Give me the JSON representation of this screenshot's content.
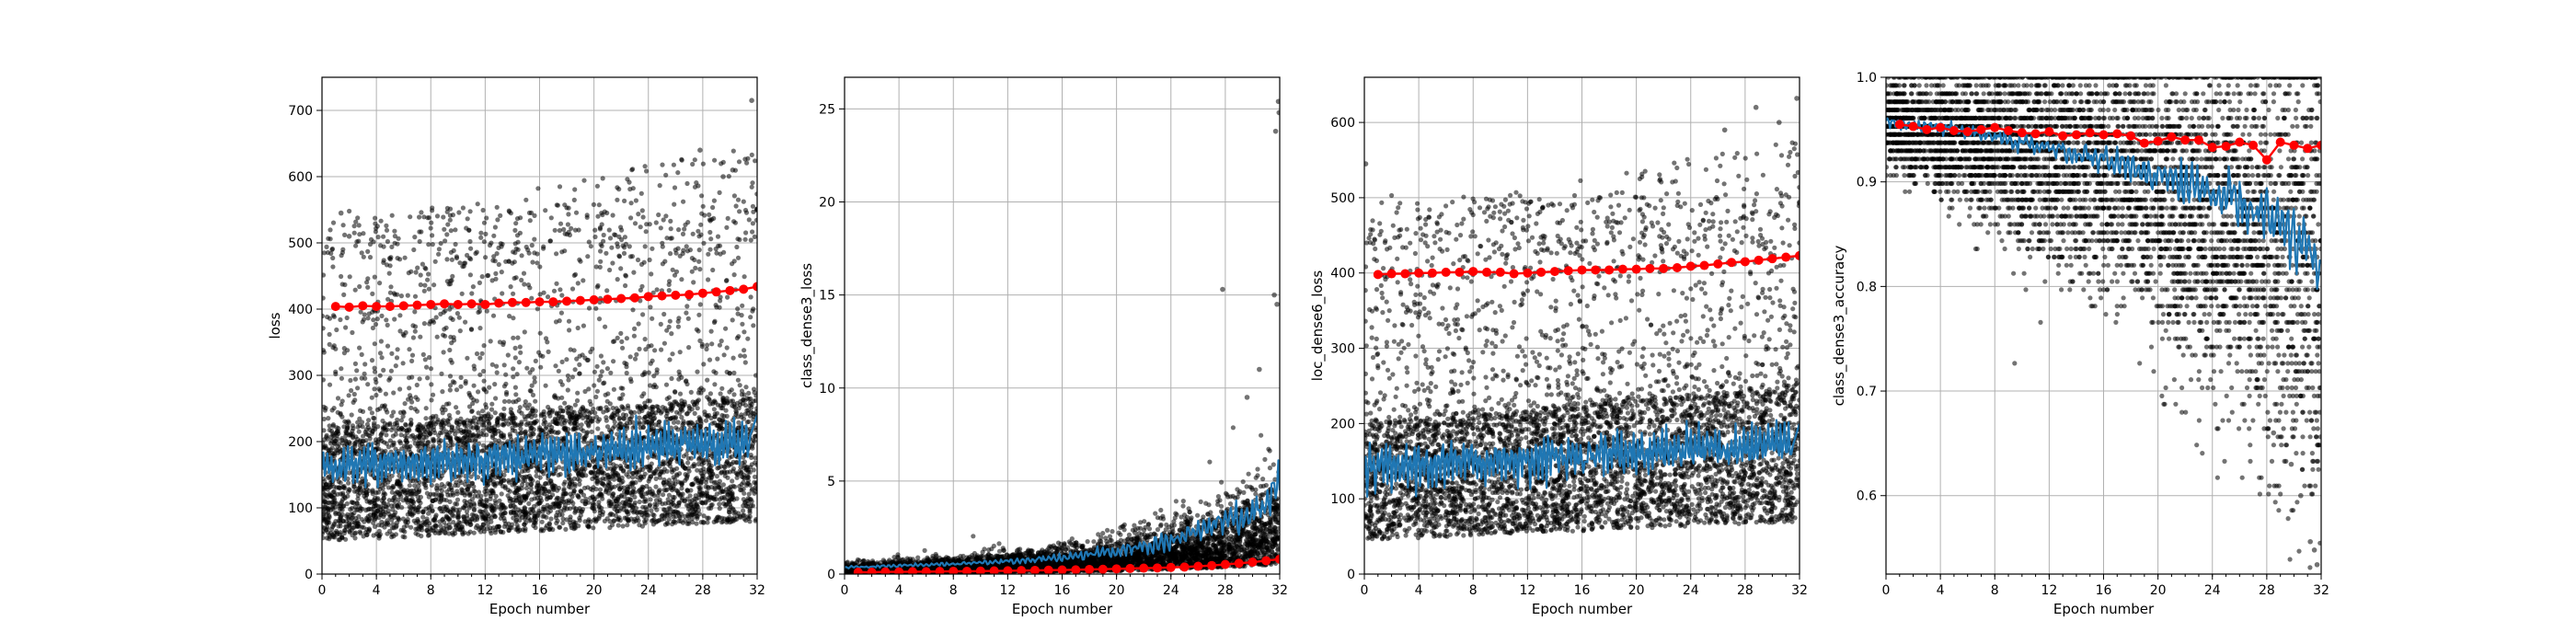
{
  "chart_data": [
    {
      "type": "scatter",
      "xlabel": "Epoch number",
      "ylabel": "loss",
      "xlim": [
        0,
        32
      ],
      "ylim": [
        0,
        750
      ],
      "xticks": [
        0,
        4,
        8,
        12,
        16,
        20,
        24,
        28,
        32
      ],
      "yticks": [
        0,
        100,
        200,
        300,
        400,
        500,
        600,
        700
      ],
      "grid": true,
      "series": [
        {
          "kind": "scatter",
          "color": "#000000",
          "band": {
            "x_start": 0,
            "x_end": 32,
            "low_start": 50,
            "low_end": 80,
            "high_start": 220,
            "high_end": 270,
            "sparse_top_start": 520,
            "sparse_top_end": 650
          },
          "outliers": [
            [
              1.4,
              545
            ],
            [
              2,
              510
            ],
            [
              27.8,
              640
            ],
            [
              31.6,
              715
            ],
            [
              30.2,
              610
            ],
            [
              29.5,
              600
            ]
          ]
        },
        {
          "kind": "line",
          "color": "#1f77b4",
          "start": 160,
          "end": 200,
          "oscillation": 25,
          "final_spike": 240
        },
        {
          "kind": "line-marker",
          "color": "#ff0000",
          "x": [
            1,
            2,
            3,
            4,
            5,
            6,
            7,
            8,
            9,
            10,
            11,
            12,
            13,
            14,
            15,
            16,
            17,
            18,
            19,
            20,
            21,
            22,
            23,
            24,
            25,
            26,
            27,
            28,
            29,
            30,
            31,
            32
          ],
          "y": [
            404,
            403,
            405,
            404,
            404,
            405,
            406,
            407,
            408,
            407,
            408,
            407,
            409,
            410,
            410,
            411,
            411,
            412,
            413,
            414,
            415,
            416,
            417,
            419,
            420,
            421,
            422,
            424,
            426,
            428,
            430,
            434
          ]
        }
      ]
    },
    {
      "type": "scatter",
      "xlabel": "Epoch number",
      "ylabel": "class_dense3_loss",
      "xlim": [
        0,
        32
      ],
      "ylim": [
        0,
        26.7
      ],
      "xticks": [
        0,
        4,
        8,
        12,
        16,
        20,
        24,
        28,
        32
      ],
      "yticks": [
        0,
        5,
        10,
        15,
        20,
        25
      ],
      "grid": true,
      "series": [
        {
          "kind": "scatter",
          "color": "#000000",
          "outliers": [
            [
              31.9,
              25.4
            ],
            [
              31.95,
              24.8
            ],
            [
              31.7,
              23.8
            ],
            [
              27.8,
              15.3
            ],
            [
              31.6,
              15.0
            ],
            [
              31.8,
              14.5
            ],
            [
              29.6,
              9.5
            ],
            [
              30.5,
              11.0
            ]
          ]
        },
        {
          "kind": "line",
          "color": "#1f77b4",
          "x": [
            0,
            4,
            8,
            12,
            16,
            20,
            22,
            24,
            26,
            27,
            28,
            29,
            30,
            31,
            31.5,
            32
          ],
          "y": [
            0.35,
            0.45,
            0.55,
            0.7,
            0.9,
            1.2,
            1.5,
            1.8,
            2.3,
            2.6,
            2.8,
            3.0,
            3.3,
            3.7,
            4.2,
            5.2
          ]
        },
        {
          "kind": "line-marker",
          "color": "#ff0000",
          "x": [
            1,
            2,
            3,
            4,
            5,
            6,
            7,
            8,
            9,
            10,
            11,
            12,
            13,
            14,
            15,
            16,
            17,
            18,
            19,
            20,
            21,
            22,
            23,
            24,
            25,
            26,
            27,
            28,
            29,
            30,
            31,
            32
          ],
          "y": [
            0.1,
            0.1,
            0.12,
            0.12,
            0.13,
            0.13,
            0.14,
            0.15,
            0.15,
            0.16,
            0.17,
            0.18,
            0.19,
            0.2,
            0.21,
            0.22,
            0.23,
            0.25,
            0.26,
            0.28,
            0.3,
            0.32,
            0.33,
            0.36,
            0.38,
            0.42,
            0.46,
            0.52,
            0.58,
            0.64,
            0.72,
            0.8
          ]
        }
      ]
    },
    {
      "type": "scatter",
      "xlabel": "Epoch number",
      "ylabel": "loc_dense6_loss",
      "xlim": [
        0,
        32
      ],
      "ylim": [
        0,
        660
      ],
      "xticks": [
        0,
        4,
        8,
        12,
        16,
        20,
        24,
        28,
        32
      ],
      "yticks": [
        0,
        100,
        200,
        300,
        400,
        500,
        600
      ],
      "grid": true,
      "series": [
        {
          "kind": "scatter",
          "color": "#000000",
          "band": {
            "x_start": 0,
            "x_end": 32,
            "low_start": 45,
            "low_end": 70,
            "high_start": 200,
            "high_end": 250,
            "sparse_top_start": 470,
            "sparse_top_end": 580
          },
          "outliers": [
            [
              0.1,
              545
            ],
            [
              28.8,
              620
            ],
            [
              31.8,
              632
            ],
            [
              30.5,
              600
            ],
            [
              26.5,
              590
            ]
          ]
        },
        {
          "kind": "line",
          "color": "#1f77b4",
          "start": 140,
          "end": 175,
          "oscillation": 22,
          "final_spike": 200
        },
        {
          "kind": "line-marker",
          "color": "#ff0000",
          "x": [
            1,
            2,
            3,
            4,
            5,
            6,
            7,
            8,
            9,
            10,
            11,
            12,
            13,
            14,
            15,
            16,
            17,
            18,
            19,
            20,
            21,
            22,
            23,
            24,
            25,
            26,
            27,
            28,
            29,
            30,
            31,
            32
          ],
          "y": [
            398,
            399,
            399,
            400,
            400,
            401,
            401,
            402,
            401,
            401,
            399,
            400,
            401,
            402,
            403,
            404,
            404,
            404,
            405,
            405,
            406,
            406,
            407,
            409,
            410,
            412,
            414,
            415,
            417,
            419,
            421,
            423
          ]
        }
      ]
    },
    {
      "type": "scatter",
      "xlabel": "Epoch number",
      "ylabel": "class_dense3_accuracy",
      "xlim": [
        0,
        32
      ],
      "ylim": [
        0.525,
        1.0
      ],
      "xticks": [
        0,
        4,
        8,
        12,
        16,
        20,
        24,
        28,
        32
      ],
      "yticks": [
        0.6,
        0.7,
        0.8,
        0.9,
        1.0
      ],
      "grid": true,
      "series": [
        {
          "kind": "scatter",
          "color": "#000000",
          "discrete_levels": true,
          "outliers": [
            [
              31.2,
              0.556
            ],
            [
              31.5,
              0.548
            ],
            [
              31.7,
              0.534
            ],
            [
              30.5,
              0.6
            ],
            [
              29.8,
              0.63
            ],
            [
              28.5,
              0.66
            ]
          ]
        },
        {
          "kind": "line",
          "color": "#1f77b4",
          "x": [
            0,
            2,
            4,
            6,
            8,
            10,
            12,
            14,
            16,
            18,
            20,
            22,
            24,
            26,
            28,
            29,
            30,
            31,
            32
          ],
          "y": [
            0.958,
            0.955,
            0.952,
            0.948,
            0.943,
            0.937,
            0.932,
            0.927,
            0.921,
            0.914,
            0.907,
            0.899,
            0.89,
            0.88,
            0.868,
            0.86,
            0.852,
            0.84,
            0.81
          ]
        },
        {
          "kind": "line-marker",
          "color": "#ff0000",
          "x": [
            1,
            2,
            3,
            4,
            5,
            6,
            7,
            8,
            9,
            10,
            11,
            12,
            13,
            14,
            15,
            16,
            17,
            18,
            19,
            20,
            21,
            22,
            23,
            24,
            25,
            26,
            27,
            28,
            29,
            30,
            31,
            32
          ],
          "y": [
            0.955,
            0.953,
            0.95,
            0.952,
            0.949,
            0.948,
            0.95,
            0.952,
            0.949,
            0.947,
            0.946,
            0.948,
            0.944,
            0.945,
            0.947,
            0.945,
            0.946,
            0.944,
            0.937,
            0.939,
            0.943,
            0.94,
            0.94,
            0.933,
            0.934,
            0.938,
            0.935,
            0.921,
            0.938,
            0.935,
            0.932,
            0.935
          ]
        }
      ]
    }
  ]
}
